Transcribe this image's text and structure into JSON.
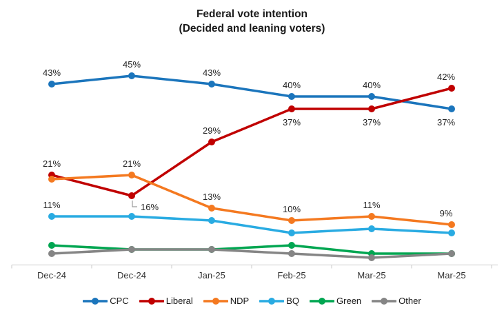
{
  "title": {
    "line1": "Federal vote intention",
    "line2": "(Decided and leaning voters)"
  },
  "chart_data": {
    "type": "line",
    "title": "Federal vote intention (Decided and leaning voters)",
    "categories": [
      "Dec-24",
      "Dec-24",
      "Jan-25",
      "Feb-25",
      "Mar-25",
      "Mar-25"
    ],
    "series": [
      {
        "name": "CPC",
        "color": "#1B75BC",
        "values": [
          43,
          45,
          43,
          40,
          40,
          37
        ],
        "labels": [
          "43%",
          "45%",
          "43%",
          "40%",
          "40%",
          "37%"
        ],
        "label_pos": [
          "above",
          "above",
          "above",
          "above",
          "above",
          "below"
        ]
      },
      {
        "name": "Liberal",
        "color": "#C00000",
        "values": [
          21,
          16,
          29,
          37,
          37,
          42
        ],
        "labels": [
          "21%",
          "16%",
          "29%",
          "37%",
          "37%",
          "42%"
        ],
        "label_pos": [
          "above",
          "leader",
          "above",
          "below",
          "below",
          "above"
        ]
      },
      {
        "name": "NDP",
        "color": "#F47920",
        "values": [
          20,
          21,
          13,
          10,
          11,
          9
        ],
        "labels": [
          null,
          "21%",
          "13%",
          "10%",
          "11%",
          "9%"
        ],
        "label_pos": [
          null,
          "above",
          "above",
          "above",
          "above",
          "above"
        ]
      },
      {
        "name": "BQ",
        "color": "#29ABE2",
        "values": [
          11,
          11,
          10,
          7,
          8,
          7
        ],
        "labels": [
          "11%",
          null,
          null,
          null,
          null,
          null
        ],
        "label_pos": [
          "above",
          null,
          null,
          null,
          null,
          null
        ]
      },
      {
        "name": "Green",
        "color": "#00A651",
        "values": [
          4,
          3,
          3,
          4,
          2,
          2
        ],
        "labels": [
          null,
          null,
          null,
          null,
          null,
          null
        ],
        "label_pos": [
          null,
          null,
          null,
          null,
          null,
          null
        ]
      },
      {
        "name": "Other",
        "color": "#858585",
        "values": [
          2,
          3,
          3,
          2,
          1,
          2
        ],
        "labels": [
          null,
          null,
          null,
          null,
          null,
          null
        ],
        "label_pos": [
          null,
          null,
          null,
          null,
          null,
          null
        ]
      }
    ],
    "ylim": [
      0,
      50
    ],
    "grid": false,
    "y_axis_visible": false,
    "data_label_suffix": "%",
    "legend_position": "bottom",
    "axis_color": "#C9C9C9",
    "leader_line_color": "#9B9B9B"
  }
}
